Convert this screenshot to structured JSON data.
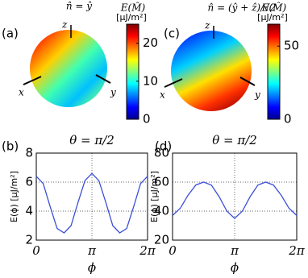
{
  "chart_data": [
    {
      "type": "sphere",
      "panel": "(a)",
      "title": "n̂ = ŷ",
      "colorbar_label": "E(M̂)",
      "colorbar_unit": "[μJ/m²]",
      "clim": [
        0,
        25
      ],
      "cticks": [
        0,
        10,
        20
      ],
      "axis_labels": [
        "z",
        "x",
        "y"
      ]
    },
    {
      "type": "sphere",
      "panel": "(c)",
      "title": "n̂ = (ŷ + ẑ)/√2",
      "colorbar_label": "E(M̂)",
      "colorbar_unit": "[μJ/m²]",
      "clim": [
        0,
        65
      ],
      "cticks": [
        0,
        50
      ],
      "axis_labels": [
        "z",
        "x",
        "y"
      ]
    },
    {
      "type": "line",
      "panel": "(b)",
      "title": "θ = π/2",
      "xlabel": "ϕ",
      "ylabel": "E(ϕ) [μJ/m²]",
      "color": "#3b4fd8",
      "x": [
        0,
        0.3927,
        0.7854,
        1.1781,
        1.5708,
        1.9635,
        2.3562,
        2.7489,
        3.1416,
        3.5343,
        3.927,
        4.3197,
        4.7124,
        5.1051,
        5.4978,
        5.8905,
        6.2832
      ],
      "values": [
        6.4,
        5.9,
        4.3,
        2.8,
        2.5,
        3.0,
        4.6,
        6.1,
        6.6,
        6.1,
        4.6,
        3.0,
        2.5,
        2.8,
        4.3,
        5.9,
        6.4
      ],
      "xlim": [
        0,
        6.2832
      ],
      "xticks": [
        0,
        {
          "value": 3.1416,
          "label": "π"
        },
        {
          "value": 6.2832,
          "label": "2π"
        }
      ],
      "ylim": [
        2,
        8
      ],
      "yticks": [
        2,
        4,
        6,
        8
      ],
      "grid": true
    },
    {
      "type": "line",
      "panel": "(d)",
      "title": "θ = π/2",
      "xlabel": "ϕ",
      "ylabel": "E(ϕ) [μJ/m²]",
      "color": "#3b4fd8",
      "x": [
        0,
        0.3927,
        0.7854,
        1.1781,
        1.5708,
        1.9635,
        2.3562,
        2.7489,
        3.1416,
        3.5343,
        3.927,
        4.3197,
        4.7124,
        5.1051,
        5.4978,
        5.8905,
        6.2832
      ],
      "values": [
        37,
        42,
        51,
        58,
        60,
        58,
        50,
        40,
        35,
        40,
        50,
        58,
        60,
        58,
        51,
        42,
        37
      ],
      "xlim": [
        0,
        6.2832
      ],
      "xticks": [
        0,
        {
          "value": 3.1416,
          "label": "π"
        },
        {
          "value": 6.2832,
          "label": "2π"
        }
      ],
      "ylim": [
        20,
        80
      ],
      "yticks": [
        20,
        40,
        60,
        80
      ],
      "grid": true
    }
  ]
}
